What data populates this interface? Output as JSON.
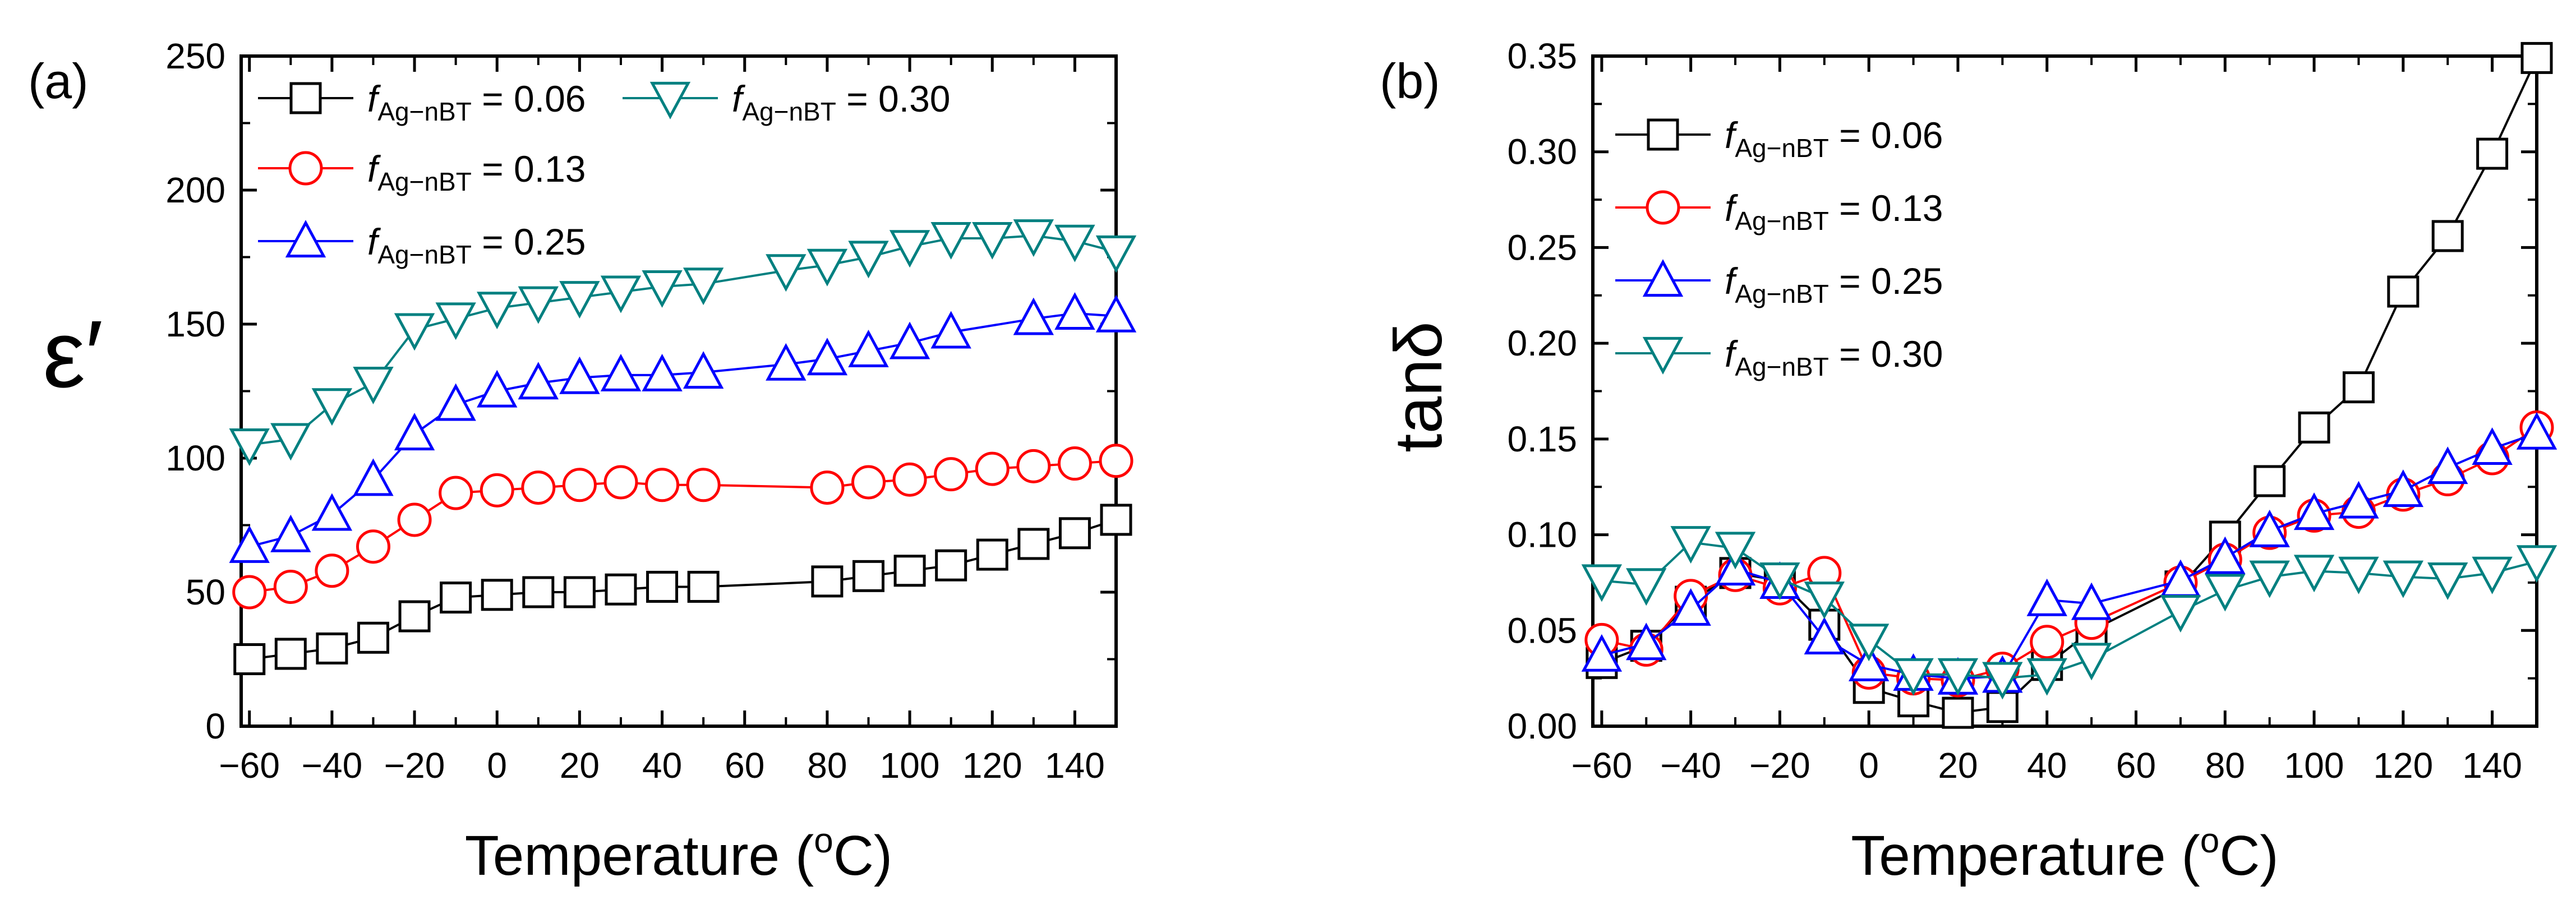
{
  "chart_data": [
    {
      "type": "line",
      "panel_label": "(a)",
      "xlabel": "Temperature (oC)",
      "xlabel_parts": {
        "main": "Temperature (",
        "sup": "o",
        "end": "C)"
      },
      "ylabel": "ε′",
      "xlim": [
        -62,
        150
      ],
      "ylim": [
        0,
        250
      ],
      "xticks": [
        -60,
        -40,
        -20,
        0,
        20,
        40,
        60,
        80,
        100,
        120,
        140
      ],
      "yticks": [
        0,
        50,
        100,
        150,
        200,
        250
      ],
      "xtick_labels": [
        "−60",
        "−40",
        "−20",
        "0",
        "20",
        "40",
        "60",
        "80",
        "100",
        "120",
        "140"
      ],
      "ytick_labels": [
        "0",
        "50",
        "100",
        "150",
        "200",
        "250"
      ],
      "legend_position": "top-left",
      "series": [
        {
          "name": "fAg−nBT = 0.06",
          "label_f": "f",
          "label_sub": "Ag−nBT",
          "label_val": "= 0.06",
          "marker": "square",
          "color": "#000000",
          "x": [
            -60,
            -50,
            -40,
            -30,
            -20,
            -10,
            0,
            10,
            20,
            30,
            40,
            50,
            80,
            90,
            100,
            110,
            120,
            130,
            140,
            150
          ],
          "y": [
            25,
            27,
            29,
            33,
            41,
            48,
            49,
            50,
            50,
            51,
            52,
            52,
            54,
            56,
            58,
            60,
            64,
            68,
            72,
            77
          ]
        },
        {
          "name": "fAg−nBT = 0.13",
          "label_f": "f",
          "label_sub": "Ag−nBT",
          "label_val": "= 0.13",
          "marker": "circle",
          "color": "#ff0000",
          "x": [
            -60,
            -50,
            -40,
            -30,
            -20,
            -10,
            0,
            10,
            20,
            30,
            40,
            50,
            80,
            90,
            100,
            110,
            120,
            130,
            140,
            150
          ],
          "y": [
            50,
            52,
            58,
            67,
            77,
            87,
            88,
            89,
            90,
            91,
            90,
            90,
            89,
            91,
            92,
            94,
            96,
            97,
            98,
            99
          ]
        },
        {
          "name": "fAg−nBT = 0.25",
          "label_f": "f",
          "label_sub": "Ag−nBT",
          "label_val": "= 0.25",
          "marker": "triangle-up",
          "color": "#0000ff",
          "x": [
            -60,
            -50,
            -40,
            -30,
            -20,
            -10,
            0,
            10,
            20,
            30,
            40,
            50,
            70,
            80,
            90,
            100,
            110,
            130,
            140,
            150
          ],
          "y": [
            67,
            71,
            79,
            92,
            109,
            120,
            125,
            128,
            130,
            131,
            131,
            132,
            135,
            137,
            140,
            143,
            147,
            152,
            154,
            153
          ]
        },
        {
          "name": "fAg−nBT = 0.30",
          "label_f": "f",
          "label_sub": "Ag−nBT",
          "label_val": "= 0.30",
          "marker": "triangle-down",
          "color": "#008080",
          "x": [
            -60,
            -50,
            -40,
            -30,
            -20,
            -10,
            0,
            10,
            20,
            30,
            40,
            50,
            70,
            80,
            90,
            100,
            110,
            120,
            130,
            140,
            150
          ],
          "y": [
            105,
            107,
            120,
            128,
            148,
            152,
            156,
            158,
            160,
            162,
            164,
            165,
            170,
            172,
            175,
            179,
            182,
            182,
            183,
            181,
            177
          ]
        }
      ]
    },
    {
      "type": "line",
      "panel_label": "(b)",
      "xlabel": "Temperature (oC)",
      "xlabel_parts": {
        "main": "Temperature (",
        "sup": "o",
        "end": "C)"
      },
      "ylabel": "tanδ",
      "xlim": [
        -62,
        150
      ],
      "ylim": [
        0,
        0.35
      ],
      "xticks": [
        -60,
        -40,
        -20,
        0,
        20,
        40,
        60,
        80,
        100,
        120,
        140
      ],
      "yticks": [
        0,
        0.05,
        0.1,
        0.15,
        0.2,
        0.25,
        0.3,
        0.35
      ],
      "xtick_labels": [
        "−60",
        "−40",
        "−20",
        "0",
        "20",
        "40",
        "60",
        "80",
        "100",
        "120",
        "140"
      ],
      "ytick_labels": [
        "0.00",
        "0.05",
        "0.10",
        "0.15",
        "0.20",
        "0.25",
        "0.30",
        "0.35"
      ],
      "legend_position": "top-left",
      "series": [
        {
          "name": "fAg−nBT = 0.06",
          "label_f": "f",
          "label_sub": "Ag−nBT",
          "label_val": "= 0.06",
          "marker": "square",
          "color": "#000000",
          "x": [
            -60,
            -50,
            -40,
            -30,
            -20,
            -10,
            0,
            10,
            20,
            30,
            40,
            50,
            70,
            80,
            90,
            100,
            110,
            120,
            130,
            140,
            150
          ],
          "y": [
            0.033,
            0.042,
            0.065,
            0.08,
            0.076,
            0.053,
            0.02,
            0.013,
            0.007,
            0.01,
            0.032,
            0.05,
            0.073,
            0.099,
            0.128,
            0.156,
            0.177,
            0.227,
            0.256,
            0.299,
            0.349
          ]
        },
        {
          "name": "fAg−nBT = 0.13",
          "label_f": "f",
          "label_sub": "Ag−nBT",
          "label_val": "= 0.13",
          "marker": "circle",
          "color": "#ff0000",
          "x": [
            -60,
            -50,
            -40,
            -30,
            -20,
            -10,
            0,
            10,
            20,
            30,
            40,
            50,
            70,
            80,
            90,
            100,
            110,
            120,
            130,
            140,
            150
          ],
          "y": [
            0.045,
            0.04,
            0.068,
            0.079,
            0.072,
            0.08,
            0.028,
            0.025,
            0.024,
            0.03,
            0.044,
            0.054,
            0.075,
            0.087,
            0.101,
            0.11,
            0.112,
            0.121,
            0.129,
            0.14,
            0.156
          ]
        },
        {
          "name": "fAg−nBT = 0.25",
          "label_f": "f",
          "label_sub": "Ag−nBT",
          "label_val": "= 0.25",
          "marker": "triangle-up",
          "color": "#0000ff",
          "x": [
            -60,
            -50,
            -40,
            -30,
            -20,
            -10,
            0,
            10,
            20,
            30,
            40,
            50,
            70,
            80,
            90,
            100,
            110,
            120,
            130,
            140,
            150
          ],
          "y": [
            0.037,
            0.043,
            0.061,
            0.082,
            0.075,
            0.046,
            0.032,
            0.027,
            0.025,
            0.026,
            0.066,
            0.064,
            0.076,
            0.088,
            0.102,
            0.111,
            0.117,
            0.123,
            0.135,
            0.145,
            0.153
          ]
        },
        {
          "name": "fAg−nBT = 0.30",
          "label_f": "f",
          "label_sub": "Ag−nBT",
          "label_val": "= 0.30",
          "marker": "triangle-down",
          "color": "#008080",
          "x": [
            -60,
            -50,
            -40,
            -30,
            -20,
            -10,
            0,
            10,
            20,
            30,
            40,
            50,
            70,
            80,
            90,
            100,
            110,
            120,
            130,
            140,
            150
          ],
          "y": [
            0.076,
            0.074,
            0.096,
            0.093,
            0.077,
            0.067,
            0.045,
            0.027,
            0.027,
            0.025,
            0.027,
            0.035,
            0.06,
            0.071,
            0.078,
            0.081,
            0.08,
            0.078,
            0.077,
            0.08,
            0.086
          ]
        }
      ]
    }
  ]
}
